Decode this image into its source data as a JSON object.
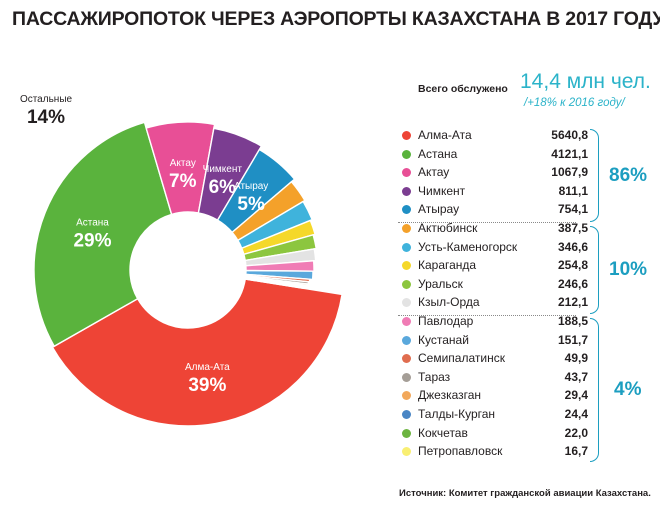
{
  "title": "ПАССАЖИРОПОТОК ЧЕРЕЗ АЭРОПОРТЫ КАЗАХСТАНА В 2017 ГОДУ",
  "summary": {
    "label": "Всего обслужено",
    "value": "14,4 млн чел.",
    "note": "/+18% к 2016 году/"
  },
  "source": "Источник: Комитет гражданской авиации Казахстана.",
  "group_percents": [
    "86%",
    "10%",
    "4%"
  ],
  "slice_labels": [
    {
      "name": "Алма-Ата",
      "pct": "39%"
    },
    {
      "name": "Астана",
      "pct": "29%"
    },
    {
      "name": "Актау",
      "pct": "7%"
    },
    {
      "name": "Чимкент",
      "pct": "6%"
    },
    {
      "name": "Атырау",
      "pct": "5%"
    },
    {
      "name": "Остальные",
      "pct": "14%"
    }
  ],
  "legend_display": [
    "5640,8",
    "4121,1",
    "1067,9",
    "811,1",
    "754,1",
    "387,5",
    "346,6",
    "254,8",
    "246,6",
    "212,1",
    "188,5",
    "151,7",
    "49,9",
    "43,7",
    "29,4",
    "24,4",
    "22,0",
    "16,7"
  ],
  "colors": [
    "#ee4436",
    "#5ab33d",
    "#e84f96",
    "#7b3d91",
    "#1f8fc4",
    "#f4a12a",
    "#3fb3dc",
    "#f5d82a",
    "#8cc63f",
    "#e3e3e3",
    "#f07cb5",
    "#5aa8dc",
    "#e06d4f",
    "#a59e97",
    "#f2a85b",
    "#4a86c5",
    "#6cb440",
    "#f9ef72"
  ],
  "chart_data": {
    "type": "pie",
    "title": "ПАССАЖИРОПОТОК ЧЕРЕЗ АЭРОПОРТЫ КАЗАХСТАНА В 2017 ГОДУ",
    "categories": [
      "Алма-Ата",
      "Астана",
      "Актау",
      "Чимкент",
      "Атырау",
      "Актюбинск",
      "Усть-Каменогорск",
      "Караганда",
      "Уральск",
      "Кзыл-Орда",
      "Павлодар",
      "Кустанай",
      "Семипалатинск",
      "Тараз",
      "Джезказган",
      "Талды-Курган",
      "Кокчетав",
      "Петропавловск"
    ],
    "values": [
      5640.8,
      4121.1,
      1067.9,
      811.1,
      754.1,
      387.5,
      346.6,
      254.8,
      246.6,
      212.1,
      188.5,
      151.7,
      49.9,
      43.7,
      29.4,
      24.4,
      22.0,
      16.7
    ]
  }
}
